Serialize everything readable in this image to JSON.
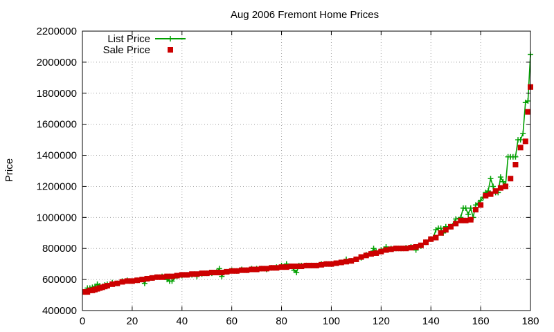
{
  "chart_data": {
    "type": "line",
    "title": "Aug 2006 Fremont Home Prices",
    "xlabel": "",
    "ylabel": "Price",
    "xlim": [
      0,
      180
    ],
    "ylim": [
      400000,
      2200000
    ],
    "xticks": [
      0,
      20,
      40,
      60,
      80,
      100,
      120,
      140,
      160,
      180
    ],
    "yticks": [
      400000,
      600000,
      800000,
      1000000,
      1200000,
      1400000,
      1600000,
      1800000,
      2000000,
      2200000
    ],
    "grid": true,
    "legend_position": "top-left",
    "series": [
      {
        "name": "List Price",
        "style": "line+plus",
        "color": "#00a000",
        "x": [
          1,
          2,
          3,
          4,
          5,
          6,
          7,
          8,
          9,
          10,
          12,
          14,
          16,
          18,
          20,
          22,
          24,
          25,
          26,
          28,
          30,
          32,
          34,
          35,
          36,
          38,
          40,
          42,
          44,
          46,
          48,
          50,
          52,
          54,
          55,
          56,
          57,
          58,
          60,
          62,
          64,
          66,
          68,
          70,
          72,
          74,
          76,
          78,
          80,
          82,
          84,
          85,
          86,
          87,
          88,
          90,
          92,
          94,
          96,
          98,
          100,
          102,
          104,
          106,
          108,
          110,
          112,
          114,
          116,
          117,
          118,
          120,
          122,
          124,
          126,
          128,
          130,
          132,
          134,
          136,
          138,
          140,
          141,
          142,
          143,
          144,
          145,
          146,
          148,
          150,
          152,
          153,
          154,
          155,
          156,
          157,
          158,
          159,
          160,
          161,
          162,
          163,
          164,
          165,
          166,
          167,
          168,
          169,
          170,
          171,
          172,
          173,
          174,
          175,
          176,
          177,
          178,
          179,
          180
        ],
        "y": [
          520000,
          545000,
          545000,
          550000,
          555000,
          570000,
          560000,
          555000,
          565000,
          570000,
          580000,
          575000,
          590000,
          595000,
          590000,
          595000,
          600000,
          575000,
          605000,
          610000,
          615000,
          620000,
          600000,
          590000,
          590000,
          620000,
          625000,
          630000,
          630000,
          620000,
          635000,
          640000,
          640000,
          650000,
          670000,
          620000,
          650000,
          650000,
          660000,
          655000,
          665000,
          660000,
          670000,
          670000,
          670000,
          665000,
          675000,
          680000,
          690000,
          700000,
          685000,
          660000,
          645000,
          690000,
          690000,
          690000,
          690000,
          690000,
          700000,
          700000,
          700000,
          705000,
          710000,
          730000,
          720000,
          730000,
          740000,
          760000,
          770000,
          800000,
          780000,
          790000,
          810000,
          800000,
          800000,
          800000,
          805000,
          810000,
          790000,
          815000,
          840000,
          860000,
          870000,
          920000,
          930000,
          930000,
          900000,
          940000,
          940000,
          990000,
          1000000,
          1060000,
          1060000,
          1020000,
          1060000,
          1000000,
          1080000,
          1090000,
          1110000,
          1130000,
          1160000,
          1170000,
          1250000,
          1200000,
          1160000,
          1160000,
          1260000,
          1230000,
          1210000,
          1390000,
          1390000,
          1390000,
          1390000,
          1500000,
          1500000,
          1540000,
          1740000,
          1750000,
          2050000
        ]
      },
      {
        "name": "Sale Price",
        "style": "points",
        "color": "#cc0000",
        "x": [
          1,
          2,
          3,
          4,
          5,
          6,
          7,
          8,
          9,
          10,
          12,
          14,
          16,
          18,
          20,
          22,
          24,
          26,
          28,
          30,
          32,
          34,
          36,
          38,
          40,
          42,
          44,
          46,
          48,
          50,
          52,
          54,
          56,
          58,
          60,
          62,
          64,
          66,
          68,
          70,
          72,
          74,
          76,
          78,
          80,
          82,
          84,
          86,
          88,
          90,
          92,
          94,
          96,
          98,
          100,
          102,
          104,
          106,
          108,
          110,
          112,
          114,
          116,
          118,
          120,
          122,
          124,
          126,
          128,
          130,
          132,
          134,
          136,
          138,
          140,
          142,
          144,
          146,
          148,
          150,
          152,
          154,
          156,
          158,
          160,
          162,
          164,
          166,
          168,
          170,
          172,
          174,
          176,
          178,
          179,
          180
        ],
        "y": [
          520000,
          520000,
          530000,
          530000,
          535000,
          540000,
          545000,
          550000,
          555000,
          560000,
          570000,
          575000,
          585000,
          590000,
          590000,
          595000,
          600000,
          605000,
          610000,
          615000,
          615000,
          620000,
          620000,
          625000,
          630000,
          630000,
          635000,
          635000,
          640000,
          640000,
          645000,
          645000,
          645000,
          650000,
          655000,
          655000,
          660000,
          660000,
          665000,
          665000,
          670000,
          670000,
          675000,
          675000,
          680000,
          680000,
          685000,
          685000,
          685000,
          690000,
          690000,
          690000,
          695000,
          700000,
          700000,
          705000,
          710000,
          715000,
          720000,
          730000,
          745000,
          755000,
          765000,
          770000,
          780000,
          790000,
          795000,
          800000,
          800000,
          800000,
          805000,
          810000,
          820000,
          840000,
          860000,
          870000,
          900000,
          920000,
          940000,
          960000,
          980000,
          980000,
          985000,
          1050000,
          1080000,
          1140000,
          1150000,
          1170000,
          1190000,
          1200000,
          1250000,
          1340000,
          1450000,
          1490000,
          1680000,
          1840000
        ]
      }
    ]
  }
}
